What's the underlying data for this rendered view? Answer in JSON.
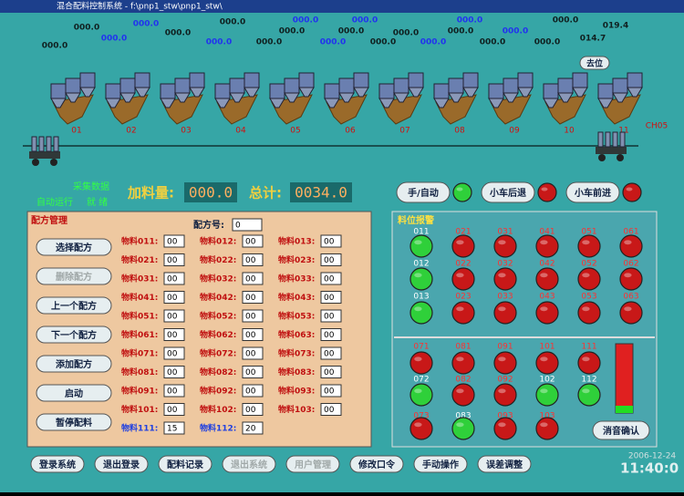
{
  "title_bar": "混合配料控制系统 - f:\\pnp1_stw\\pnp1_stw\\",
  "readouts": [
    "000.0",
    "000.0",
    "000.0",
    "000.0",
    "000.0",
    "000.0",
    "000.0",
    "000.0",
    "000.0",
    "000.0",
    "000.0",
    "000.0",
    "000.0",
    "000.0",
    "000.0",
    "000.0",
    "000.0",
    "000.0",
    "000.0",
    "000.0",
    "000.0",
    "000.0",
    "014.7",
    "019.4"
  ],
  "stations": [
    "01",
    "02",
    "03",
    "04",
    "05",
    "06",
    "07",
    "08",
    "09",
    "10",
    "11"
  ],
  "rail_label": "CH05",
  "goto_button": "去位",
  "status": {
    "collect": "采集数据",
    "auto": "自动运行",
    "ready": "就 绪"
  },
  "feed": {
    "label": "加料量:",
    "value": "000.0"
  },
  "total": {
    "label": "总计:",
    "value": "0034.0"
  },
  "controls": [
    {
      "label": "手/自动",
      "lamp": "green"
    },
    {
      "label": "小车后退",
      "lamp": "red"
    },
    {
      "label": "小车前进",
      "lamp": "red"
    }
  ],
  "recipe": {
    "title": "配方管理",
    "number_label": "配方号:",
    "number": "0",
    "buttons": [
      {
        "label": "选择配方",
        "disabled": false
      },
      {
        "label": "删除配方",
        "disabled": true
      },
      {
        "label": "上一个配方",
        "disabled": false
      },
      {
        "label": "下一个配方",
        "disabled": false
      },
      {
        "label": "添加配方",
        "disabled": false
      },
      {
        "label": "启动",
        "disabled": false
      },
      {
        "label": "暂停配料",
        "disabled": false
      }
    ],
    "materials": [
      [
        {
          "label": "物料011:",
          "value": "00"
        },
        {
          "label": "物料012:",
          "value": "00"
        },
        {
          "label": "物料013:",
          "value": "00"
        }
      ],
      [
        {
          "label": "物料021:",
          "value": "00"
        },
        {
          "label": "物料022:",
          "value": "00"
        },
        {
          "label": "物料023:",
          "value": "00"
        }
      ],
      [
        {
          "label": "物料031:",
          "value": "00"
        },
        {
          "label": "物料032:",
          "value": "00"
        },
        {
          "label": "物料033:",
          "value": "00"
        }
      ],
      [
        {
          "label": "物料041:",
          "value": "00"
        },
        {
          "label": "物料042:",
          "value": "00"
        },
        {
          "label": "物料043:",
          "value": "00"
        }
      ],
      [
        {
          "label": "物料051:",
          "value": "00"
        },
        {
          "label": "物料052:",
          "value": "00"
        },
        {
          "label": "物料053:",
          "value": "00"
        }
      ],
      [
        {
          "label": "物料061:",
          "value": "00"
        },
        {
          "label": "物料062:",
          "value": "00"
        },
        {
          "label": "物料063:",
          "value": "00"
        }
      ],
      [
        {
          "label": "物料071:",
          "value": "00"
        },
        {
          "label": "物料072:",
          "value": "00"
        },
        {
          "label": "物料073:",
          "value": "00"
        }
      ],
      [
        {
          "label": "物料081:",
          "value": "00"
        },
        {
          "label": "物料082:",
          "value": "00"
        },
        {
          "label": "物料083:",
          "value": "00"
        }
      ],
      [
        {
          "label": "物料091:",
          "value": "00"
        },
        {
          "label": "物料092:",
          "value": "00"
        },
        {
          "label": "物料093:",
          "value": "00"
        }
      ],
      [
        {
          "label": "物料101:",
          "value": "00"
        },
        {
          "label": "物料102:",
          "value": "00"
        },
        {
          "label": "物料103:",
          "value": "00"
        }
      ],
      [
        {
          "label": "物料111:",
          "value": "15"
        },
        {
          "label": "物料112:",
          "value": "20"
        }
      ]
    ]
  },
  "alarm": {
    "title": "料位报警",
    "upper": [
      [
        {
          "label": "011",
          "color": "green"
        },
        {
          "label": "021",
          "color": "red"
        },
        {
          "label": "031",
          "color": "red"
        },
        {
          "label": "041",
          "color": "red"
        },
        {
          "label": "051",
          "color": "red"
        },
        {
          "label": "061",
          "color": "red"
        }
      ],
      [
        {
          "label": "012",
          "color": "green"
        },
        {
          "label": "022",
          "color": "red"
        },
        {
          "label": "032",
          "color": "red"
        },
        {
          "label": "042",
          "color": "red"
        },
        {
          "label": "052",
          "color": "red"
        },
        {
          "label": "062",
          "color": "red"
        }
      ],
      [
        {
          "label": "013",
          "color": "green"
        },
        {
          "label": "023",
          "color": "red"
        },
        {
          "label": "033",
          "color": "red"
        },
        {
          "label": "043",
          "color": "red"
        },
        {
          "label": "053",
          "color": "red"
        },
        {
          "label": "063",
          "color": "red"
        }
      ]
    ],
    "lower": [
      [
        {
          "label": "071",
          "color": "red"
        },
        {
          "label": "081",
          "color": "red"
        },
        {
          "label": "091",
          "color": "red"
        },
        {
          "label": "101",
          "color": "red"
        },
        {
          "label": "111",
          "color": "red"
        }
      ],
      [
        {
          "label": "072",
          "color": "green"
        },
        {
          "label": "082",
          "color": "red"
        },
        {
          "label": "092",
          "color": "red"
        },
        {
          "label": "102",
          "color": "green"
        },
        {
          "label": "112",
          "color": "green"
        }
      ],
      [
        {
          "label": "073",
          "color": "red"
        },
        {
          "label": "083",
          "color": "green"
        },
        {
          "label": "093",
          "color": "red"
        },
        {
          "label": "103",
          "color": "red"
        }
      ]
    ],
    "ack": "消音确认"
  },
  "nav": [
    {
      "label": "登录系统",
      "disabled": false
    },
    {
      "label": "退出登录",
      "disabled": false
    },
    {
      "label": "配料记录",
      "disabled": false
    },
    {
      "label": "退出系统",
      "disabled": true
    },
    {
      "label": "用户管理",
      "disabled": true
    },
    {
      "label": "修改口令",
      "disabled": false
    },
    {
      "label": "手动操作",
      "disabled": false
    },
    {
      "label": "误差调整",
      "disabled": false
    }
  ],
  "date": "2006-12-24",
  "time": "11:40:0"
}
